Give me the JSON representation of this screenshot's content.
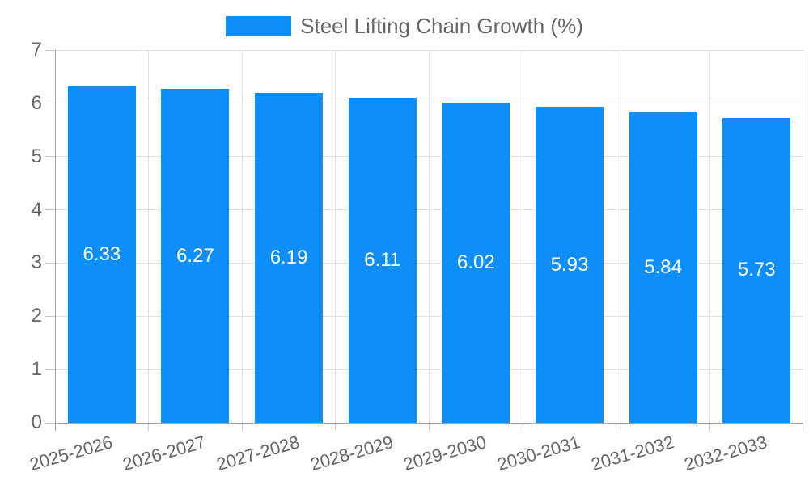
{
  "chart_data": {
    "type": "bar",
    "title": "",
    "legend": "Steel Lifting Chain Growth (%)",
    "legend_position": "top-center",
    "categories": [
      "2025-2026",
      "2026-2027",
      "2027-2028",
      "2028-2029",
      "2029-2030",
      "2030-2031",
      "2031-2032",
      "2032-2033"
    ],
    "values": [
      6.33,
      6.27,
      6.19,
      6.11,
      6.02,
      5.93,
      5.84,
      5.73
    ],
    "value_labels": [
      "6.33",
      "6.27",
      "6.19",
      "6.11",
      "6.02",
      "5.93",
      "5.84",
      "5.73"
    ],
    "xlabel": "",
    "ylabel": "",
    "ylim": [
      0,
      7
    ],
    "yticks": [
      0,
      1,
      2,
      3,
      4,
      5,
      6,
      7
    ],
    "grid": true,
    "colors": {
      "bar": "#0d8ef9",
      "grid": "#e0e0e0",
      "axis": "#a3a3a3",
      "tick": "#c9c9c9",
      "axis_label": "#666666",
      "value_label": "#ffffff",
      "legend_text": "#666666",
      "background": "#ffffff"
    }
  }
}
